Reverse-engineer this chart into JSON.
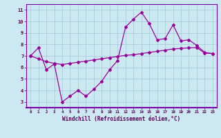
{
  "x": [
    0,
    1,
    2,
    3,
    4,
    5,
    6,
    7,
    8,
    9,
    10,
    11,
    12,
    13,
    14,
    15,
    16,
    17,
    18,
    19,
    20,
    21,
    22,
    23
  ],
  "y_main": [
    7.0,
    7.7,
    5.8,
    6.3,
    3.0,
    3.5,
    4.0,
    3.5,
    4.1,
    4.8,
    5.8,
    6.6,
    9.5,
    10.2,
    10.8,
    9.8,
    8.4,
    8.5,
    9.7,
    8.3,
    8.4,
    7.9,
    7.3,
    7.2
  ],
  "y_trend": [
    7.0,
    6.75,
    6.5,
    6.35,
    6.25,
    6.35,
    6.45,
    6.55,
    6.65,
    6.75,
    6.85,
    6.95,
    7.05,
    7.1,
    7.2,
    7.3,
    7.4,
    7.5,
    7.6,
    7.65,
    7.7,
    7.72,
    7.25,
    7.2
  ],
  "line_color": "#990099",
  "bg_color": "#cce8f0",
  "grid_color": "#aaccdd",
  "xlabel": "Windchill (Refroidissement éolien,°C)",
  "yticks": [
    3,
    4,
    5,
    6,
    7,
    8,
    9,
    10,
    11
  ],
  "xticks": [
    0,
    1,
    2,
    3,
    4,
    5,
    6,
    7,
    8,
    9,
    10,
    11,
    12,
    13,
    14,
    15,
    16,
    17,
    18,
    19,
    20,
    21,
    22,
    23
  ],
  "ylim": [
    2.5,
    11.5
  ],
  "xlim": [
    -0.5,
    23.5
  ]
}
